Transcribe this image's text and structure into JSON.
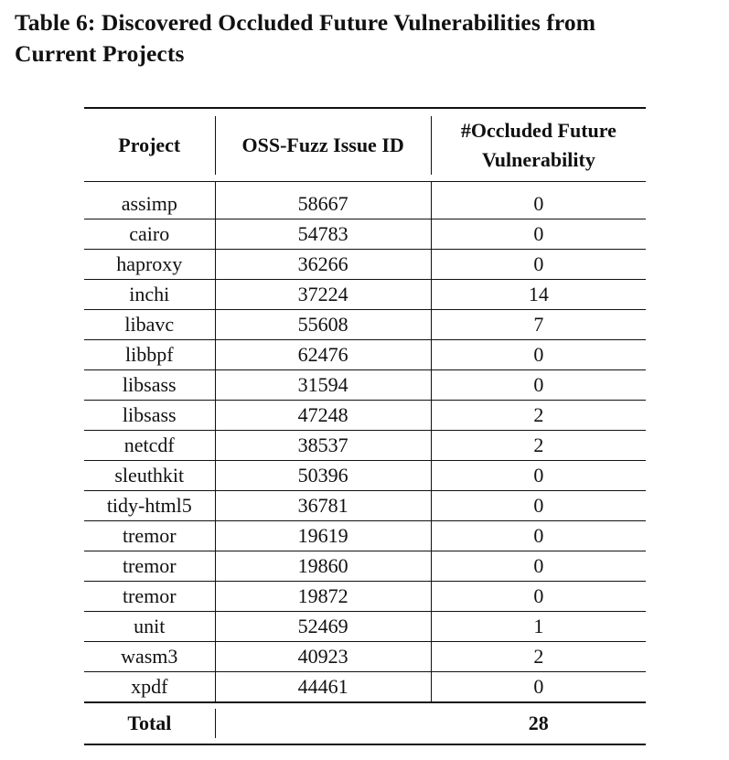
{
  "caption": {
    "line1": "Table 6: Discovered Occluded Future Vulnerabilities from",
    "line2": "Current Projects"
  },
  "table": {
    "headers": {
      "project": "Project",
      "issue_id": "OSS-Fuzz Issue ID",
      "occluded_line1": "#Occluded Future",
      "occluded_line2": "Vulnerability"
    },
    "rows": [
      {
        "project": "assimp",
        "issue_id": "58667",
        "count": "0"
      },
      {
        "project": "cairo",
        "issue_id": "54783",
        "count": "0"
      },
      {
        "project": "haproxy",
        "issue_id": "36266",
        "count": "0"
      },
      {
        "project": "inchi",
        "issue_id": "37224",
        "count": "14"
      },
      {
        "project": "libavc",
        "issue_id": "55608",
        "count": "7"
      },
      {
        "project": "libbpf",
        "issue_id": "62476",
        "count": "0"
      },
      {
        "project": "libsass",
        "issue_id": "31594",
        "count": "0"
      },
      {
        "project": "libsass",
        "issue_id": "47248",
        "count": "2"
      },
      {
        "project": "netcdf",
        "issue_id": "38537",
        "count": "2"
      },
      {
        "project": "sleuthkit",
        "issue_id": "50396",
        "count": "0"
      },
      {
        "project": "tidy-html5",
        "issue_id": "36781",
        "count": "0"
      },
      {
        "project": "tremor",
        "issue_id": "19619",
        "count": "0"
      },
      {
        "project": "tremor",
        "issue_id": "19860",
        "count": "0"
      },
      {
        "project": "tremor",
        "issue_id": "19872",
        "count": "0"
      },
      {
        "project": "unit",
        "issue_id": "52469",
        "count": "1"
      },
      {
        "project": "wasm3",
        "issue_id": "40923",
        "count": "2"
      },
      {
        "project": "xpdf",
        "issue_id": "44461",
        "count": "0"
      }
    ],
    "total": {
      "label": "Total",
      "value": "28"
    }
  }
}
